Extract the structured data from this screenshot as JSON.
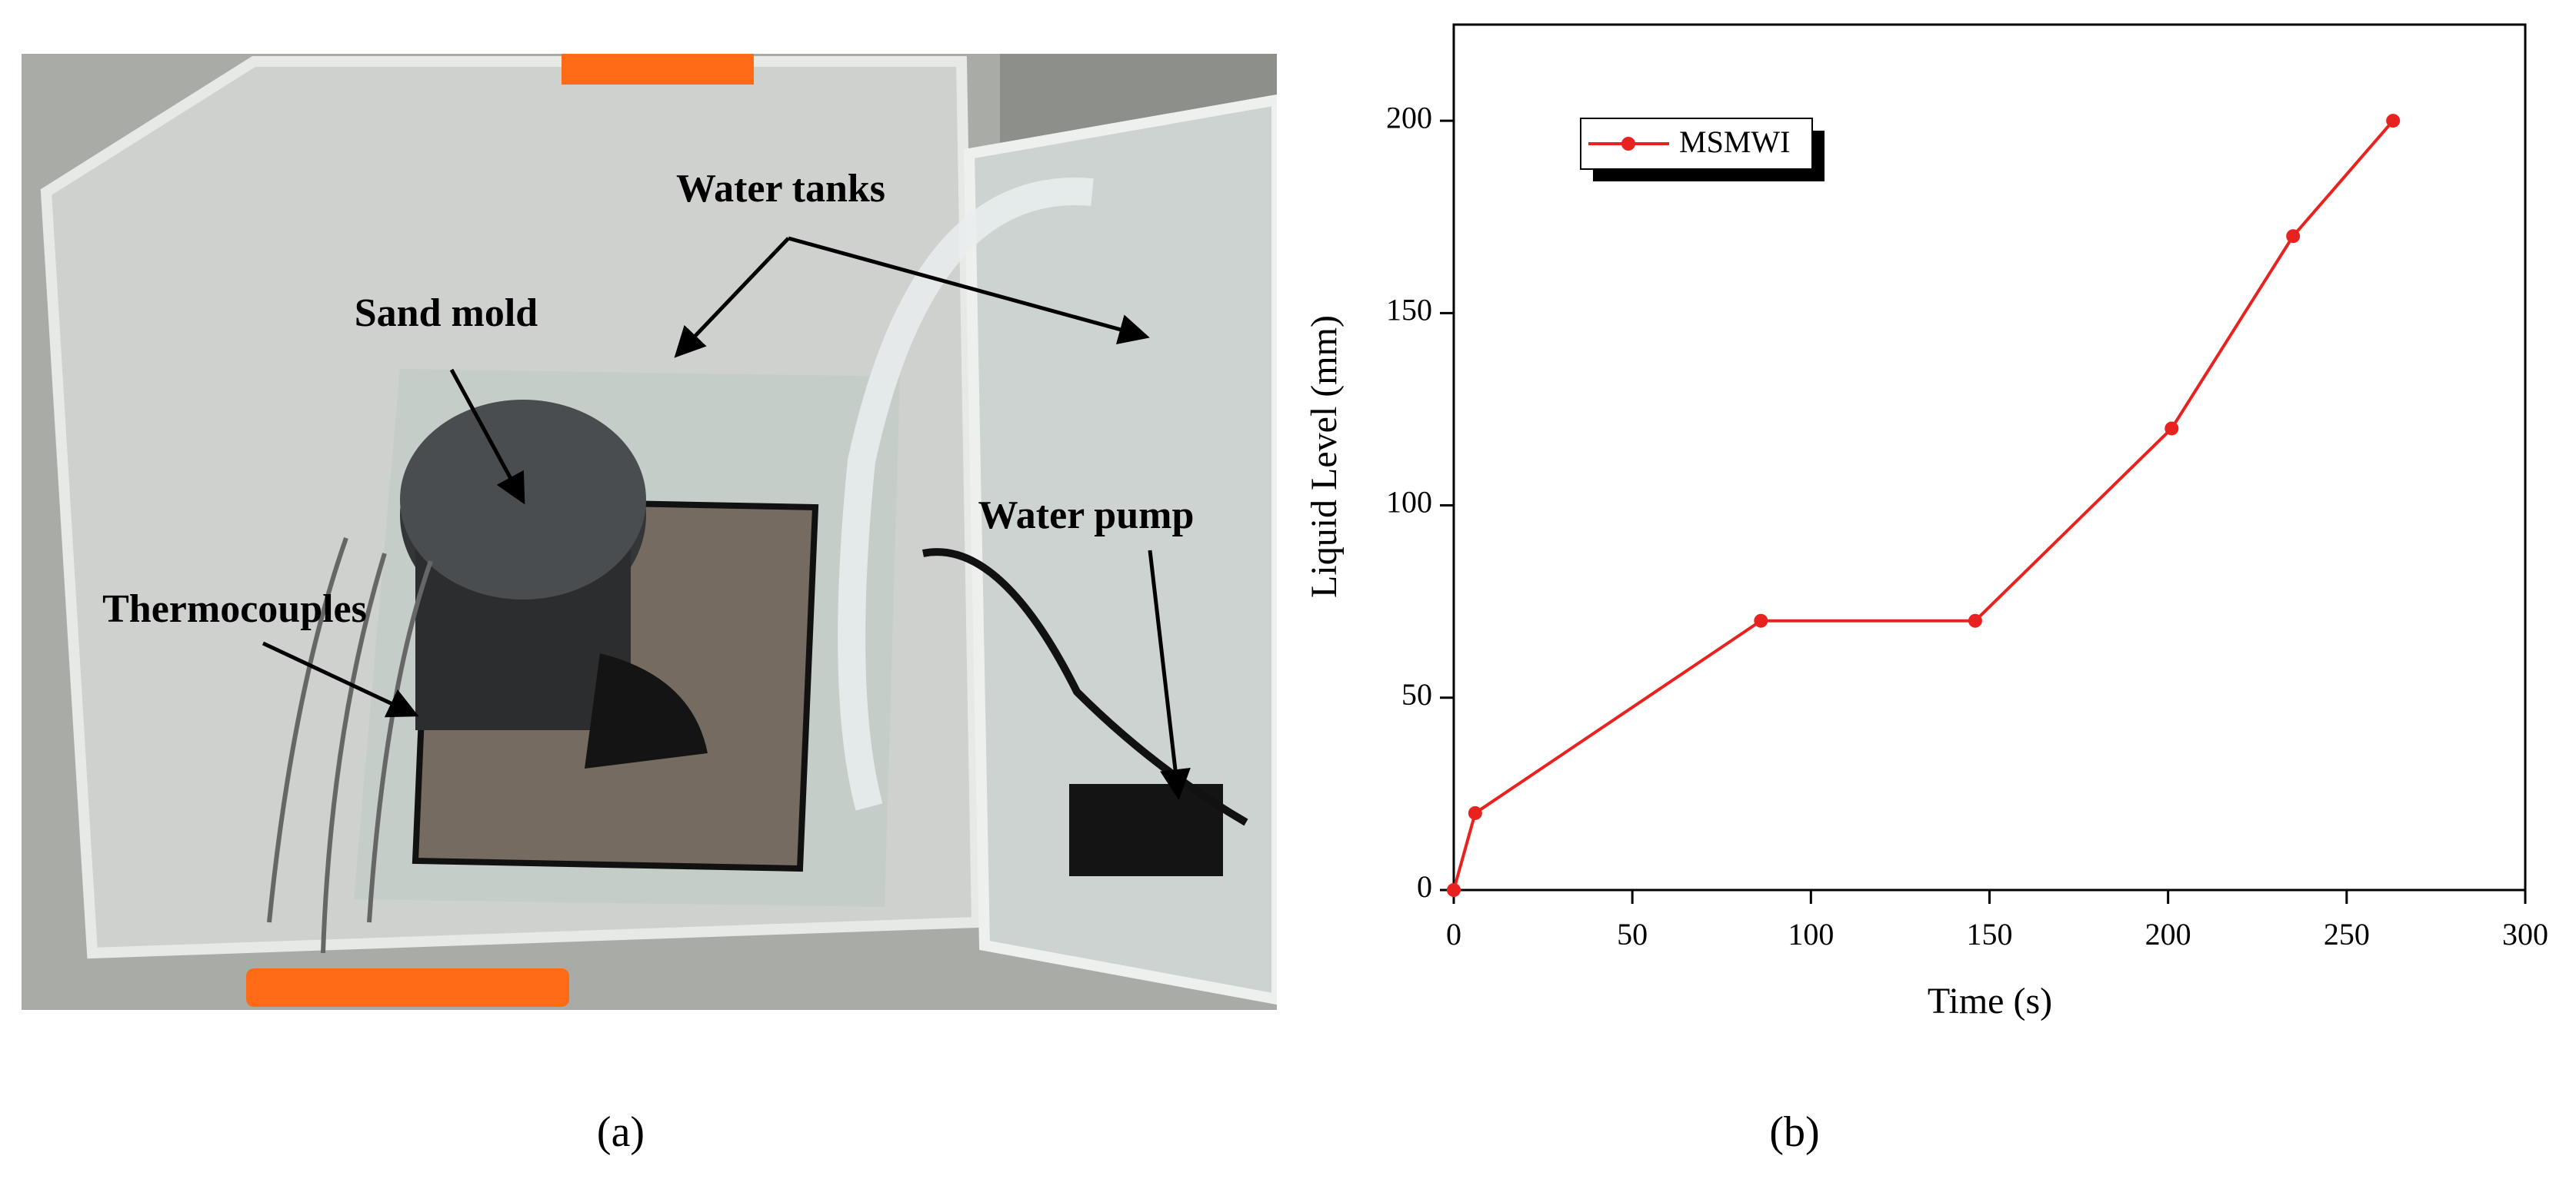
{
  "photo": {
    "labels": [
      "Water tanks",
      "Sand mold",
      "Water pump",
      "Thermocouples"
    ],
    "caption": "(a)"
  },
  "chart_data": {
    "type": "line",
    "caption": "(b)",
    "x_label": "Time (s)",
    "y_label": "Liquid Level (mm)",
    "x": [
      0,
      6,
      86,
      146,
      201,
      235,
      263
    ],
    "series": [
      {
        "name": "MSMWI",
        "color": "#e8231f",
        "values": [
          0,
          20,
          70,
          70,
          120,
          170,
          200
        ]
      }
    ],
    "xlim": [
      0,
      300
    ],
    "ylim": [
      0,
      225
    ],
    "xticks": [
      0,
      50,
      100,
      150,
      200,
      250,
      300
    ],
    "yticks": [
      0,
      50,
      100,
      150,
      200
    ],
    "legend": "upper left"
  }
}
